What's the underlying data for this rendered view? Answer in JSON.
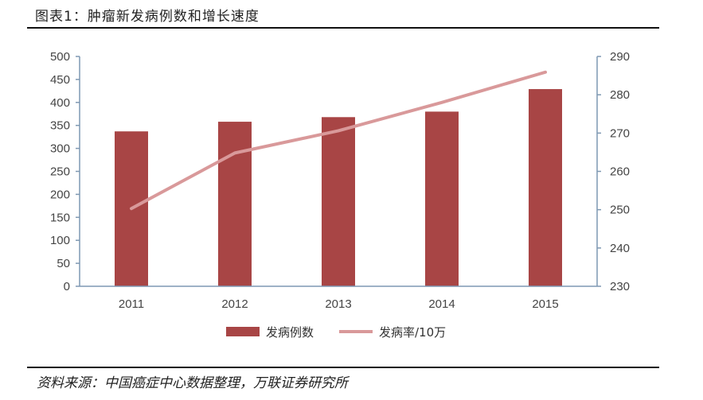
{
  "header": {
    "title": "图表1：肿瘤新发病例数和增长速度"
  },
  "footer": {
    "source": "资料来源：中国癌症中心数据整理，万联证券研究所"
  },
  "colors": {
    "bar": "#a84545",
    "line": "#d9999a",
    "axis": "#7f99b3"
  },
  "chart_data": {
    "type": "bar",
    "categories": [
      "2011",
      "2012",
      "2013",
      "2014",
      "2015"
    ],
    "series": [
      {
        "name": "发病例数",
        "type": "bar",
        "axis": "left",
        "values": [
          337,
          358,
          368,
          380,
          429
        ]
      },
      {
        "name": "发病率/10万",
        "type": "line",
        "axis": "right",
        "values": [
          250.3,
          264.8,
          270.6,
          278.0,
          285.9
        ]
      }
    ],
    "y_left": {
      "lim": [
        0,
        500
      ],
      "ticks": [
        0,
        50,
        100,
        150,
        200,
        250,
        300,
        350,
        400,
        450,
        500
      ]
    },
    "y_right": {
      "lim": [
        230,
        290
      ],
      "ticks": [
        230,
        240,
        250,
        260,
        270,
        280,
        290
      ]
    },
    "legend_position": "bottom",
    "grid": false
  }
}
